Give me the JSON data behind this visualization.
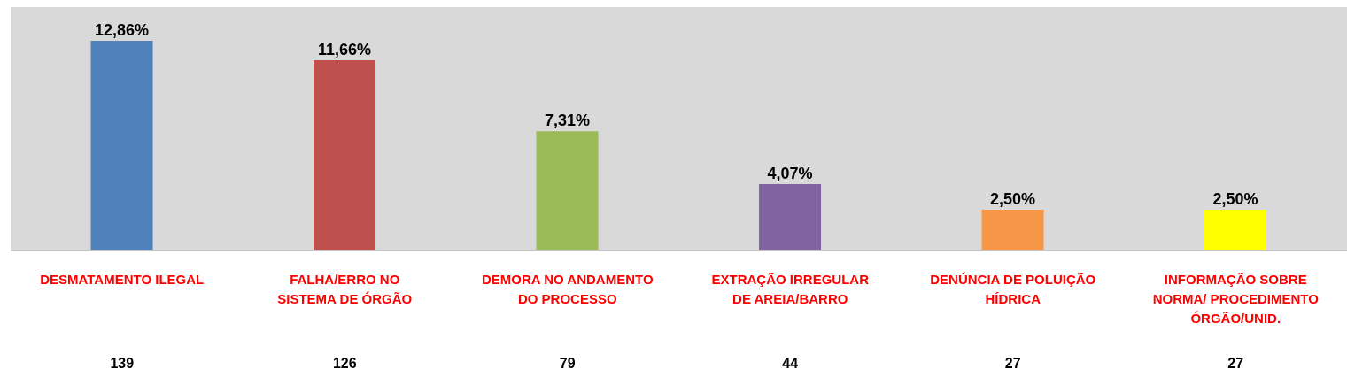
{
  "chart_data": {
    "type": "bar",
    "categories": [
      "DESMATAMENTO ILEGAL",
      "FALHA/ERRO NO SISTEMA DE ÓRGÃO",
      "DEMORA NO ANDAMENTO DO PROCESSO",
      "EXTRAÇÃO IRREGULAR DE AREIA/BARRO",
      "DENÚNCIA DE POLUIÇÃO HÍDRICA",
      "INFORMAÇÃO SOBRE NORMA/ PROCEDIMENTO ÓRGÃO/UNID."
    ],
    "values": [
      12.86,
      11.66,
      7.31,
      4.07,
      2.5,
      2.5
    ],
    "colors": [
      "#4f81bd",
      "#c0504d",
      "#9bbb59",
      "#8064a2",
      "#f79646",
      "#ffff00"
    ],
    "value_labels": [
      "12,86%",
      "11,66%",
      "7,31%",
      "4,07%",
      "2,50%",
      "2,50%"
    ],
    "annotations": [
      "139",
      "126",
      "79",
      "44",
      "27",
      "27"
    ],
    "legend": false
  }
}
